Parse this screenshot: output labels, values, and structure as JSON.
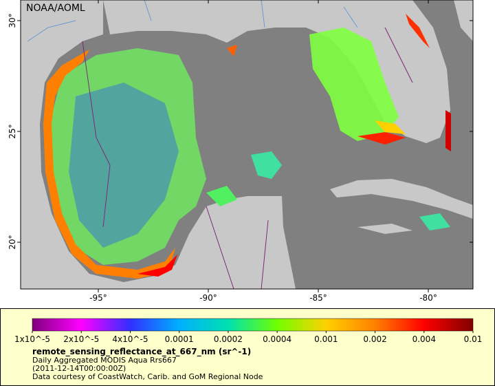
{
  "map": {
    "credit": "NOAA/AOML",
    "lon_lim": [
      -98.53,
      -77.97
    ],
    "lat_lim": [
      17.89,
      30.93
    ],
    "lon_ticks": [
      {
        "value": -95,
        "label": "-95°"
      },
      {
        "value": -90,
        "label": "-90°"
      },
      {
        "value": -85,
        "label": "-85°"
      },
      {
        "value": -80,
        "label": "-80°"
      }
    ],
    "lat_ticks": [
      {
        "value": 20,
        "label": "20°"
      },
      {
        "value": 25,
        "label": "25°"
      },
      {
        "value": 30,
        "label": "30°"
      }
    ]
  },
  "legend": {
    "colors": [
      "#800080",
      "#ff00ff",
      "#3030ff",
      "#00b0ff",
      "#00e0b0",
      "#70ff00",
      "#ffd000",
      "#ff8000",
      "#ff0000",
      "#800000"
    ],
    "ticks": [
      {
        "value": 1e-05,
        "label": "1x10^-5"
      },
      {
        "value": 2e-05,
        "label": "2x10^-5"
      },
      {
        "value": 4e-05,
        "label": "4x10^-5"
      },
      0.0001,
      0.0002,
      0.0004,
      0.001,
      0.002,
      0.004,
      0.01
    ],
    "title": "remote_sensing_reflectance_at_667_nm (sr^-1)",
    "lines": [
      "Daily Aggregated MODIS Aqua Rrs667",
      "(2011-12-14T00:00:00Z)",
      "Data courtesy of CoastWatch, Carib. and GoM Regional Node"
    ]
  }
}
